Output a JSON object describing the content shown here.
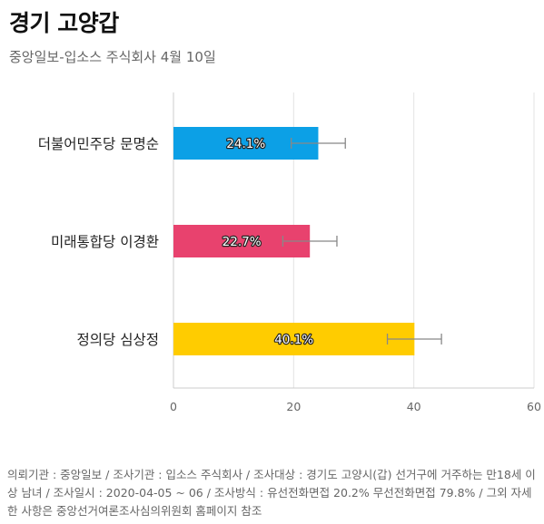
{
  "title": "경기 고양갑",
  "subtitle": "중앙일보-입소스 주식회사 4월 10일",
  "footnote": "의뢰기관 : 중앙일보 / 조사기관 : 입소스 주식회사 / 조사대상 : 경기도 고양시(갑) 선거구에 거주하는 만18세 이상 남녀 / 조사일시 : 2020-04-05 ~ 06 / 조사방식 : 유선전화면접 20.2% 무선전화면접 79.8% / 그외 자세한 사항은 중앙선거여론조사심의위원회 홈페이지 참조",
  "chart_data": {
    "type": "bar",
    "orientation": "horizontal",
    "categories": [
      "더불어민주당 문명순",
      "미래통합당 이경환",
      "정의당 심상정"
    ],
    "values": [
      24.1,
      22.7,
      40.1
    ],
    "value_labels": [
      "24.1%",
      "22.7%",
      "40.1%"
    ],
    "error_bars": [
      [
        19.6,
        28.6
      ],
      [
        18.2,
        27.2
      ],
      [
        35.6,
        44.6
      ]
    ],
    "colors": [
      "#0ca0e6",
      "#e8426e",
      "#ffcc00"
    ],
    "xlim": [
      0,
      60
    ],
    "xticks": [
      "0",
      "20",
      "40",
      "60"
    ],
    "grid": true,
    "error_bar_color": "#888888"
  }
}
